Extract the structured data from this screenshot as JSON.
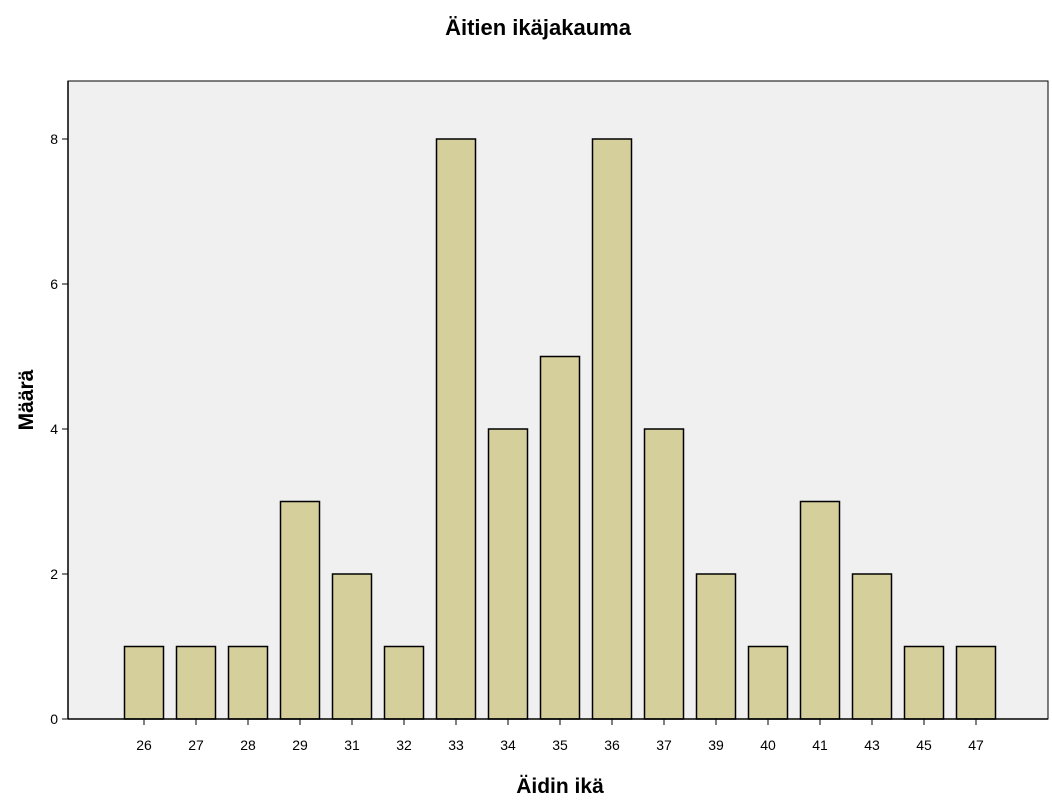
{
  "chart_data": {
    "type": "bar",
    "title": "Äitien ikäjakauma",
    "xlabel": "Äidin ikä",
    "ylabel": "Määrä",
    "categories": [
      "26",
      "27",
      "28",
      "29",
      "31",
      "32",
      "33",
      "34",
      "35",
      "36",
      "37",
      "39",
      "40",
      "41",
      "43",
      "45",
      "47"
    ],
    "values": [
      1,
      1,
      1,
      3,
      2,
      1,
      8,
      4,
      5,
      8,
      4,
      2,
      1,
      3,
      2,
      1,
      1
    ],
    "ylim": [
      0,
      8.8
    ],
    "yticks": [
      0,
      2,
      4,
      6,
      8
    ],
    "grid": false,
    "legend": "none",
    "colors": {
      "bar_fill": "#d5cf9b",
      "plot_background": "#f0f0f0"
    }
  }
}
